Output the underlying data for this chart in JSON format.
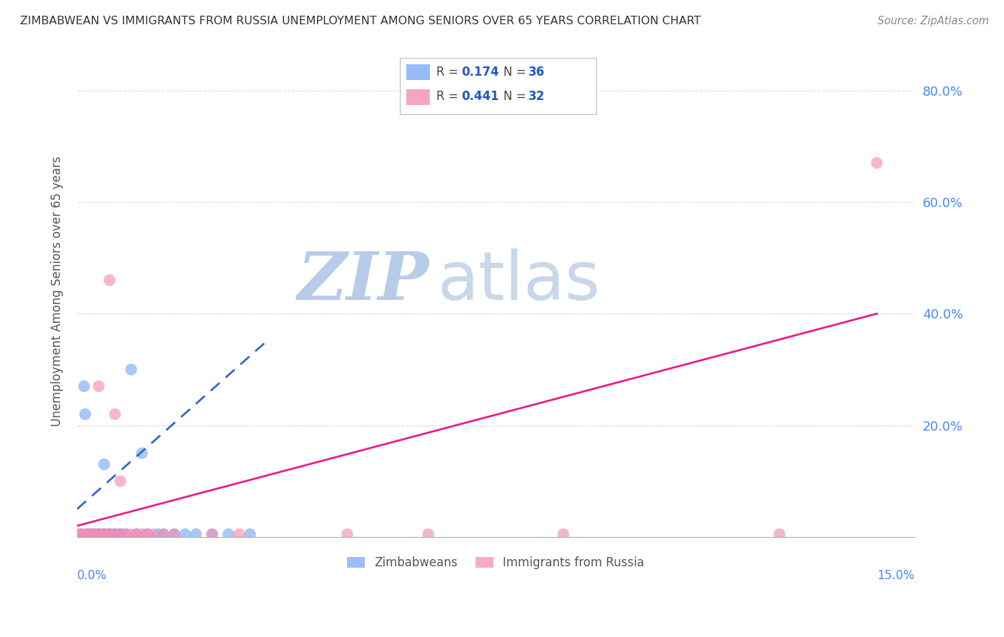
{
  "title": "ZIMBABWEAN VS IMMIGRANTS FROM RUSSIA UNEMPLOYMENT AMONG SENIORS OVER 65 YEARS CORRELATION CHART",
  "source": "Source: ZipAtlas.com",
  "ylabel": "Unemployment Among Seniors over 65 years",
  "xlim": [
    0.0,
    0.155
  ],
  "ylim": [
    0.0,
    0.88
  ],
  "legend_r1": "R = ",
  "legend_v1": "0.174",
  "legend_n1_label": "N = ",
  "legend_n1": "36",
  "legend_r2": "R = ",
  "legend_v2": "0.441",
  "legend_n2_label": "N = ",
  "legend_n2": "32",
  "zimbabwe_color": "#7BAAF7",
  "russia_color": "#F48FB1",
  "trendline_zim_color": "#3366CC",
  "trendline_rus_color": "#E91E8C",
  "watermark_zip": "ZIP",
  "watermark_atlas": "atlas",
  "watermark_color_zip": "#B8CCE8",
  "watermark_color_atlas": "#C8D8E8",
  "yticks": [
    0.0,
    0.2,
    0.4,
    0.6,
    0.8
  ],
  "ytick_labels": [
    "",
    "20.0%",
    "40.0%",
    "60.0%",
    "80.0%"
  ],
  "zim_x": [
    0.0005,
    0.001,
    0.0013,
    0.0015,
    0.002,
    0.002,
    0.0025,
    0.003,
    0.003,
    0.0033,
    0.004,
    0.004,
    0.004,
    0.005,
    0.005,
    0.005,
    0.006,
    0.006,
    0.006,
    0.007,
    0.007,
    0.008,
    0.008,
    0.009,
    0.01,
    0.011,
    0.012,
    0.013,
    0.015,
    0.016,
    0.018,
    0.02,
    0.022,
    0.025,
    0.028,
    0.032
  ],
  "zim_y": [
    0.005,
    0.005,
    0.27,
    0.22,
    0.005,
    0.005,
    0.005,
    0.005,
    0.005,
    0.005,
    0.005,
    0.005,
    0.005,
    0.13,
    0.005,
    0.005,
    0.005,
    0.005,
    0.005,
    0.005,
    0.005,
    0.005,
    0.005,
    0.005,
    0.3,
    0.005,
    0.15,
    0.005,
    0.005,
    0.005,
    0.005,
    0.005,
    0.005,
    0.005,
    0.005,
    0.005
  ],
  "rus_x": [
    0.0005,
    0.001,
    0.002,
    0.002,
    0.003,
    0.003,
    0.004,
    0.004,
    0.005,
    0.005,
    0.005,
    0.006,
    0.006,
    0.007,
    0.007,
    0.008,
    0.008,
    0.009,
    0.01,
    0.011,
    0.012,
    0.013,
    0.014,
    0.016,
    0.018,
    0.025,
    0.03,
    0.05,
    0.065,
    0.09,
    0.13,
    0.148
  ],
  "rus_y": [
    0.005,
    0.005,
    0.005,
    0.005,
    0.005,
    0.005,
    0.005,
    0.27,
    0.005,
    0.005,
    0.005,
    0.46,
    0.005,
    0.005,
    0.22,
    0.005,
    0.1,
    0.005,
    0.005,
    0.005,
    0.005,
    0.005,
    0.005,
    0.005,
    0.005,
    0.005,
    0.005,
    0.005,
    0.005,
    0.005,
    0.005,
    0.67
  ]
}
